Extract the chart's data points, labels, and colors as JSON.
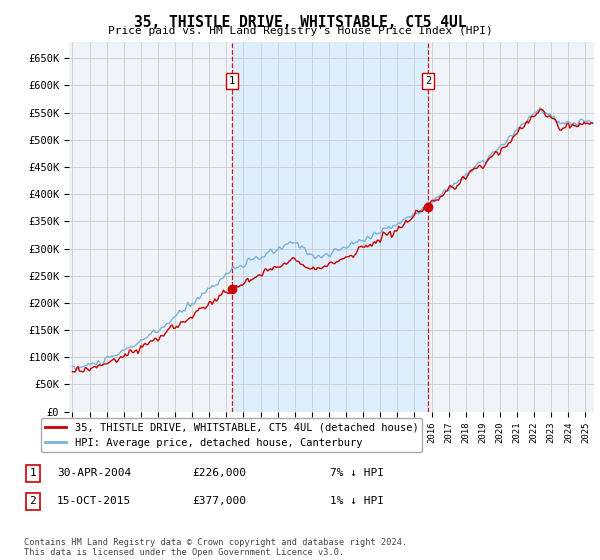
{
  "title": "35, THISTLE DRIVE, WHITSTABLE, CT5 4UL",
  "subtitle": "Price paid vs. HM Land Registry's House Price Index (HPI)",
  "legend_property": "35, THISTLE DRIVE, WHITSTABLE, CT5 4UL (detached house)",
  "legend_hpi": "HPI: Average price, detached house, Canterbury",
  "footnote": "Contains HM Land Registry data © Crown copyright and database right 2024.\nThis data is licensed under the Open Government Licence v3.0.",
  "sale1_label": "1",
  "sale1_date": "30-APR-2004",
  "sale1_price": "£226,000",
  "sale1_hpi": "7% ↓ HPI",
  "sale2_label": "2",
  "sale2_date": "15-OCT-2015",
  "sale2_price": "£377,000",
  "sale2_hpi": "1% ↓ HPI",
  "sale1_x": 2004.33,
  "sale1_y": 226000,
  "sale2_x": 2015.79,
  "sale2_y": 377000,
  "property_color": "#cc0000",
  "hpi_color": "#7ab3d9",
  "shade_color": "#ddeeff",
  "vline_color": "#cc0000",
  "grid_color": "#cccccc",
  "background_color": "#ffffff",
  "plot_bg_color": "#f0f4f8",
  "ylim": [
    0,
    680000
  ],
  "yticks": [
    0,
    50000,
    100000,
    150000,
    200000,
    250000,
    300000,
    350000,
    400000,
    450000,
    500000,
    550000,
    600000,
    650000
  ],
  "xmin": 1994.8,
  "xmax": 2025.5
}
